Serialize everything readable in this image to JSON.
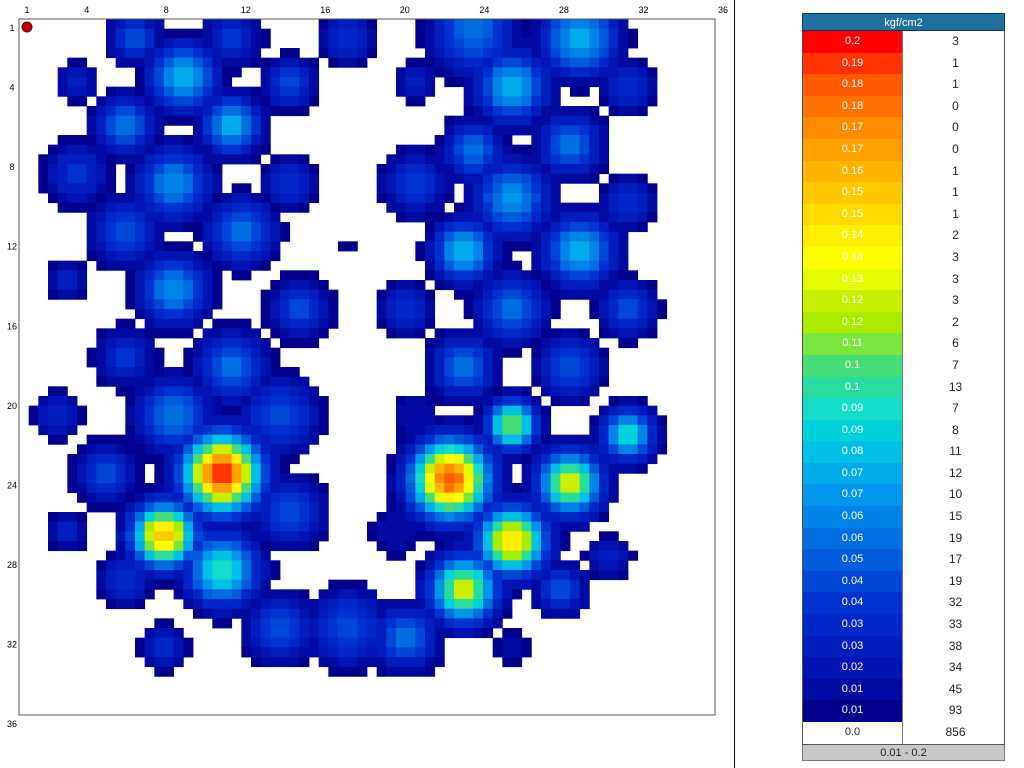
{
  "chart_data": {
    "type": "heatmap",
    "title": "",
    "x_ticks": [
      "1",
      "4",
      "8",
      "12",
      "16",
      "20",
      "24",
      "28",
      "32",
      "36"
    ],
    "y_ticks": [
      "1",
      "4",
      "8",
      "12",
      "16",
      "20",
      "24",
      "28",
      "32",
      "36"
    ],
    "grid": "36x36",
    "cell_min": 1,
    "cell_max": 36,
    "marker": {
      "row": 1,
      "col": 1,
      "color": "#c00000"
    },
    "blobs": [
      {
        "r": 1.5,
        "c": 6.5,
        "v": 0.05,
        "s": 1.2
      },
      {
        "r": 1.5,
        "c": 11.5,
        "v": 0.04,
        "s": 1.4
      },
      {
        "r": 1.5,
        "c": 17.5,
        "v": 0.04,
        "s": 1.2
      },
      {
        "r": 1.2,
        "c": 24,
        "v": 0.06,
        "s": 2
      },
      {
        "r": 1.5,
        "c": 29.5,
        "v": 0.08,
        "s": 1.8
      },
      {
        "r": 3.5,
        "c": 9,
        "v": 0.08,
        "s": 1.6
      },
      {
        "r": 3.8,
        "c": 3.5,
        "v": 0.03,
        "s": 1
      },
      {
        "r": 3.8,
        "c": 14.5,
        "v": 0.05,
        "s": 1.2
      },
      {
        "r": 3.8,
        "c": 21,
        "v": 0.03,
        "s": 1
      },
      {
        "r": 4,
        "c": 26,
        "v": 0.08,
        "s": 1.7
      },
      {
        "r": 4,
        "c": 32,
        "v": 0.04,
        "s": 1.3
      },
      {
        "r": 6,
        "c": 6,
        "v": 0.06,
        "s": 1.4
      },
      {
        "r": 6,
        "c": 11.5,
        "v": 0.08,
        "s": 1.4
      },
      {
        "r": 7.3,
        "c": 24,
        "v": 0.06,
        "s": 1.4
      },
      {
        "r": 7,
        "c": 29,
        "v": 0.06,
        "s": 1.5
      },
      {
        "r": 6.5,
        "c": 17.7,
        "v": 0.01,
        "s": 0.4
      },
      {
        "r": 8,
        "c": 13,
        "v": 0.01,
        "s": 0.3
      },
      {
        "r": 8.5,
        "c": 3.5,
        "v": 0.04,
        "s": 1.5
      },
      {
        "r": 9,
        "c": 8.5,
        "v": 0.07,
        "s": 1.7
      },
      {
        "r": 9,
        "c": 14.5,
        "v": 0.04,
        "s": 1.2
      },
      {
        "r": 9,
        "c": 21,
        "v": 0.04,
        "s": 1.6
      },
      {
        "r": 9.8,
        "c": 26,
        "v": 0.07,
        "s": 1.8
      },
      {
        "r": 10,
        "c": 32,
        "v": 0.04,
        "s": 1.3
      },
      {
        "r": 11.5,
        "c": 6,
        "v": 0.05,
        "s": 1.6
      },
      {
        "r": 11.5,
        "c": 12,
        "v": 0.06,
        "s": 1.6
      },
      {
        "r": 12.2,
        "c": 17.5,
        "v": 0.01,
        "s": 1.1
      },
      {
        "r": 12.5,
        "c": 23.5,
        "v": 0.08,
        "s": 1.5
      },
      {
        "r": 12.5,
        "c": 29.5,
        "v": 0.08,
        "s": 1.7
      },
      {
        "r": 14,
        "c": 3,
        "v": 0.03,
        "s": 1
      },
      {
        "r": 14.5,
        "c": 8.5,
        "v": 0.07,
        "s": 1.6
      },
      {
        "r": 15.5,
        "c": 15,
        "v": 0.05,
        "s": 1.4
      },
      {
        "r": 15.5,
        "c": 20.5,
        "v": 0.04,
        "s": 1.3
      },
      {
        "r": 15.5,
        "c": 26,
        "v": 0.06,
        "s": 1.6
      },
      {
        "r": 15.5,
        "c": 32,
        "v": 0.05,
        "s": 1.3
      },
      {
        "r": 18,
        "c": 6,
        "v": 0.04,
        "s": 1.4
      },
      {
        "r": 18.5,
        "c": 11.5,
        "v": 0.06,
        "s": 1.7
      },
      {
        "r": 18.5,
        "c": 23.5,
        "v": 0.06,
        "s": 1.5
      },
      {
        "r": 18.5,
        "c": 29,
        "v": 0.05,
        "s": 1.5
      },
      {
        "r": 21,
        "c": 2.5,
        "v": 0.03,
        "s": 1.2
      },
      {
        "r": 21,
        "c": 8.5,
        "v": 0.06,
        "s": 1.8
      },
      {
        "r": 21,
        "c": 14,
        "v": 0.05,
        "s": 1.8
      },
      {
        "r": 21,
        "c": 21,
        "v": 0.02,
        "s": 1.3
      },
      {
        "r": 21.5,
        "c": 26,
        "v": 0.12,
        "s": 1.2
      },
      {
        "r": 22,
        "c": 32,
        "v": 0.1,
        "s": 1.2
      },
      {
        "r": 24,
        "c": 11,
        "v": 0.2,
        "s": 1.8
      },
      {
        "r": 24.3,
        "c": 22.8,
        "v": 0.19,
        "s": 1.8
      },
      {
        "r": 24,
        "c": 5,
        "v": 0.05,
        "s": 1.4
      },
      {
        "r": 24.5,
        "c": 29,
        "v": 0.13,
        "s": 1.5
      },
      {
        "r": 26,
        "c": 14.5,
        "v": 0.05,
        "s": 1.6
      },
      {
        "r": 27,
        "c": 20,
        "v": 0.02,
        "s": 1.4
      },
      {
        "r": 27.2,
        "c": 8,
        "v": 0.16,
        "s": 1.5
      },
      {
        "r": 27,
        "c": 3,
        "v": 0.03,
        "s": 1
      },
      {
        "r": 27.5,
        "c": 26,
        "v": 0.15,
        "s": 1.6
      },
      {
        "r": 28.3,
        "c": 31,
        "v": 0.03,
        "s": 1.1
      },
      {
        "r": 29,
        "c": 11,
        "v": 0.1,
        "s": 1.7
      },
      {
        "r": 29.5,
        "c": 6,
        "v": 0.04,
        "s": 1.3
      },
      {
        "r": 30,
        "c": 23.5,
        "v": 0.13,
        "s": 1.6
      },
      {
        "r": 30,
        "c": 28.5,
        "v": 0.05,
        "s": 1.2
      },
      {
        "r": 32,
        "c": 14,
        "v": 0.05,
        "s": 1.6
      },
      {
        "r": 32,
        "c": 17.5,
        "v": 0.05,
        "s": 1.8
      },
      {
        "r": 32.5,
        "c": 20.5,
        "v": 0.06,
        "s": 1.5
      },
      {
        "r": 33,
        "c": 8,
        "v": 0.04,
        "s": 1.1
      },
      {
        "r": 33,
        "c": 26,
        "v": 0.02,
        "s": 1.1
      },
      {
        "r": 35,
        "c": 17,
        "v": 0.01,
        "s": 0.4
      }
    ]
  },
  "legend": {
    "title": "kgf/cm2",
    "rows": [
      {
        "label": "0.2",
        "count": "3",
        "color": "#ff0000",
        "text": "#ffffff"
      },
      {
        "label": "0.19",
        "count": "1",
        "color": "#ff3300",
        "text": "#ffffff"
      },
      {
        "label": "0.18",
        "count": "1",
        "color": "#ff5a00",
        "text": "#ffffff"
      },
      {
        "label": "0.18",
        "count": "0",
        "color": "#ff7200",
        "text": "#ffffff"
      },
      {
        "label": "0.17",
        "count": "0",
        "color": "#ff8c00",
        "text": "#ffffff"
      },
      {
        "label": "0.17",
        "count": "0",
        "color": "#ffa000",
        "text": "#ffffff"
      },
      {
        "label": "0.16",
        "count": "1",
        "color": "#ffb400",
        "text": "#ffffff"
      },
      {
        "label": "0.15",
        "count": "1",
        "color": "#ffc800",
        "text": "#ffffff"
      },
      {
        "label": "0.15",
        "count": "1",
        "color": "#ffdc00",
        "text": "#ffffff"
      },
      {
        "label": "0.14",
        "count": "2",
        "color": "#fff000",
        "text": "#ffffff"
      },
      {
        "label": "0.14",
        "count": "3",
        "color": "#ffff00",
        "text": "#ffffff"
      },
      {
        "label": "0.13",
        "count": "3",
        "color": "#e6ff00",
        "text": "#ffffff"
      },
      {
        "label": "0.12",
        "count": "3",
        "color": "#c8f000",
        "text": "#ffffff"
      },
      {
        "label": "0.12",
        "count": "2",
        "color": "#aaeb00",
        "text": "#ffffff"
      },
      {
        "label": "0.11",
        "count": "6",
        "color": "#78e63c",
        "text": "#ffffff"
      },
      {
        "label": "0.1",
        "count": "7",
        "color": "#46dc78",
        "text": "#ffffff"
      },
      {
        "label": "0.1",
        "count": "13",
        "color": "#28dca0",
        "text": "#ffffff"
      },
      {
        "label": "0.09",
        "count": "7",
        "color": "#14dcc8",
        "text": "#ffffff"
      },
      {
        "label": "0.09",
        "count": "8",
        "color": "#00d2dc",
        "text": "#ffffff"
      },
      {
        "label": "0.08",
        "count": "11",
        "color": "#00c0e6",
        "text": "#ffffff"
      },
      {
        "label": "0.07",
        "count": "12",
        "color": "#00aaeb",
        "text": "#ffffff"
      },
      {
        "label": "0.07",
        "count": "10",
        "color": "#0096eb",
        "text": "#ffffff"
      },
      {
        "label": "0.06",
        "count": "15",
        "color": "#0082e6",
        "text": "#ffffff"
      },
      {
        "label": "0.06",
        "count": "19",
        "color": "#006ee1",
        "text": "#ffffff"
      },
      {
        "label": "0.05",
        "count": "17",
        "color": "#005adc",
        "text": "#ffffff"
      },
      {
        "label": "0.04",
        "count": "19",
        "color": "#0046d7",
        "text": "#ffffff"
      },
      {
        "label": "0.04",
        "count": "32",
        "color": "#0032d2",
        "text": "#ffffff"
      },
      {
        "label": "0.03",
        "count": "33",
        "color": "#0028c8",
        "text": "#ffffff"
      },
      {
        "label": "0.03",
        "count": "38",
        "color": "#001ebe",
        "text": "#ffffff"
      },
      {
        "label": "0.02",
        "count": "34",
        "color": "#0014b4",
        "text": "#ffffff"
      },
      {
        "label": "0.01",
        "count": "45",
        "color": "#000aa0",
        "text": "#ffffff"
      },
      {
        "label": "0.01",
        "count": "93",
        "color": "#00008c",
        "text": "#ffffff"
      }
    ],
    "zero_label": "0.0",
    "zero_count": "856",
    "range": "0.01 - 0.2"
  }
}
